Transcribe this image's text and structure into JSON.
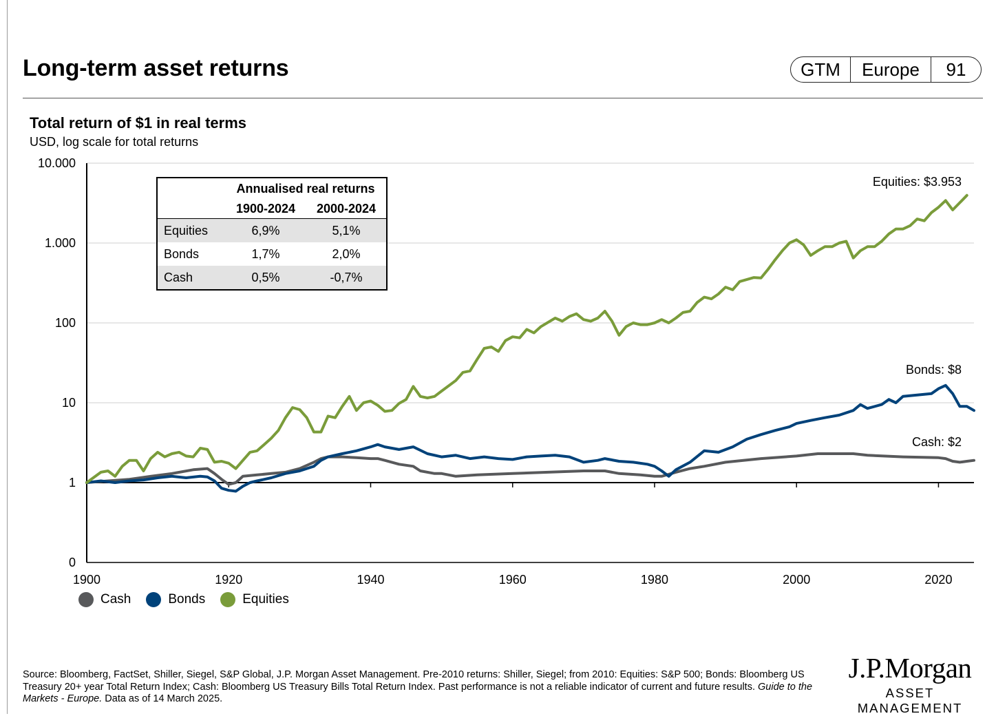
{
  "header": {
    "title": "Long-term asset returns",
    "tags": [
      "GTM",
      "Europe",
      "91"
    ]
  },
  "chart_data": {
    "type": "line",
    "title": "Total return of $1 in real terms",
    "subtitle": "USD, log scale for total returns",
    "y_scale": "log",
    "xlim": [
      1900,
      2025
    ],
    "ylim": [
      0.1,
      10000
    ],
    "x_ticks": [
      1900,
      1920,
      1940,
      1960,
      1980,
      2000,
      2020
    ],
    "y_ticks": [
      {
        "value": 10000,
        "label": "10.000"
      },
      {
        "value": 1000,
        "label": "1.000"
      },
      {
        "value": 100,
        "label": "100"
      },
      {
        "value": 10,
        "label": "10"
      },
      {
        "value": 1,
        "label": "1"
      },
      {
        "value": 0.1,
        "label": "0"
      }
    ],
    "grid": true,
    "legend_position": "bottom-left",
    "series": [
      {
        "name": "Cash",
        "color": "#58595b",
        "end_label": "Cash: $2",
        "points": [
          [
            1900,
            1
          ],
          [
            1903,
            1.05
          ],
          [
            1906,
            1.1
          ],
          [
            1909,
            1.2
          ],
          [
            1912,
            1.3
          ],
          [
            1915,
            1.45
          ],
          [
            1917,
            1.5
          ],
          [
            1918,
            1.3
          ],
          [
            1919,
            1.1
          ],
          [
            1920,
            0.95
          ],
          [
            1921,
            1.0
          ],
          [
            1922,
            1.2
          ],
          [
            1924,
            1.25
          ],
          [
            1926,
            1.3
          ],
          [
            1928,
            1.35
          ],
          [
            1930,
            1.5
          ],
          [
            1932,
            1.8
          ],
          [
            1933,
            2.0
          ],
          [
            1934,
            2.1
          ],
          [
            1936,
            2.1
          ],
          [
            1938,
            2.05
          ],
          [
            1940,
            2.0
          ],
          [
            1941,
            2.0
          ],
          [
            1942,
            1.9
          ],
          [
            1944,
            1.7
          ],
          [
            1946,
            1.6
          ],
          [
            1947,
            1.4
          ],
          [
            1949,
            1.3
          ],
          [
            1950,
            1.3
          ],
          [
            1952,
            1.2
          ],
          [
            1955,
            1.25
          ],
          [
            1960,
            1.3
          ],
          [
            1965,
            1.35
          ],
          [
            1970,
            1.4
          ],
          [
            1973,
            1.4
          ],
          [
            1975,
            1.3
          ],
          [
            1978,
            1.25
          ],
          [
            1980,
            1.2
          ],
          [
            1981,
            1.2
          ],
          [
            1983,
            1.35
          ],
          [
            1985,
            1.5
          ],
          [
            1987,
            1.6
          ],
          [
            1990,
            1.8
          ],
          [
            1995,
            2.0
          ],
          [
            2000,
            2.15
          ],
          [
            2003,
            2.3
          ],
          [
            2006,
            2.3
          ],
          [
            2008,
            2.3
          ],
          [
            2010,
            2.2
          ],
          [
            2015,
            2.1
          ],
          [
            2020,
            2.05
          ],
          [
            2021,
            2.0
          ],
          [
            2022,
            1.85
          ],
          [
            2023,
            1.8
          ],
          [
            2024,
            1.85
          ],
          [
            2025,
            1.9
          ]
        ]
      },
      {
        "name": "Bonds",
        "color": "#00427a",
        "end_label": "Bonds: $8",
        "points": [
          [
            1900,
            1
          ],
          [
            1902,
            1.05
          ],
          [
            1904,
            1.0
          ],
          [
            1906,
            1.05
          ],
          [
            1908,
            1.08
          ],
          [
            1910,
            1.15
          ],
          [
            1912,
            1.2
          ],
          [
            1914,
            1.15
          ],
          [
            1916,
            1.2
          ],
          [
            1917,
            1.18
          ],
          [
            1918,
            1.05
          ],
          [
            1919,
            0.85
          ],
          [
            1920,
            0.8
          ],
          [
            1921,
            0.78
          ],
          [
            1922,
            0.9
          ],
          [
            1923,
            1.0
          ],
          [
            1924,
            1.05
          ],
          [
            1926,
            1.15
          ],
          [
            1928,
            1.3
          ],
          [
            1930,
            1.4
          ],
          [
            1931,
            1.5
          ],
          [
            1932,
            1.6
          ],
          [
            1933,
            1.9
          ],
          [
            1934,
            2.1
          ],
          [
            1936,
            2.3
          ],
          [
            1938,
            2.5
          ],
          [
            1940,
            2.8
          ],
          [
            1941,
            3.0
          ],
          [
            1942,
            2.8
          ],
          [
            1944,
            2.6
          ],
          [
            1946,
            2.8
          ],
          [
            1948,
            2.3
          ],
          [
            1950,
            2.1
          ],
          [
            1952,
            2.2
          ],
          [
            1954,
            2.0
          ],
          [
            1956,
            2.1
          ],
          [
            1958,
            2.0
          ],
          [
            1960,
            1.95
          ],
          [
            1962,
            2.1
          ],
          [
            1964,
            2.15
          ],
          [
            1966,
            2.2
          ],
          [
            1968,
            2.1
          ],
          [
            1970,
            1.8
          ],
          [
            1972,
            1.9
          ],
          [
            1973,
            2.0
          ],
          [
            1975,
            1.85
          ],
          [
            1977,
            1.8
          ],
          [
            1979,
            1.7
          ],
          [
            1980,
            1.6
          ],
          [
            1981,
            1.4
          ],
          [
            1982,
            1.2
          ],
          [
            1983,
            1.45
          ],
          [
            1985,
            1.8
          ],
          [
            1987,
            2.5
          ],
          [
            1989,
            2.4
          ],
          [
            1991,
            2.8
          ],
          [
            1993,
            3.5
          ],
          [
            1995,
            4.0
          ],
          [
            1997,
            4.5
          ],
          [
            1999,
            5.0
          ],
          [
            2000,
            5.5
          ],
          [
            2002,
            6.0
          ],
          [
            2004,
            6.5
          ],
          [
            2006,
            7.0
          ],
          [
            2008,
            8.0
          ],
          [
            2009,
            9.5
          ],
          [
            2010,
            8.5
          ],
          [
            2012,
            9.5
          ],
          [
            2013,
            11.0
          ],
          [
            2014,
            10.0
          ],
          [
            2015,
            12.0
          ],
          [
            2017,
            12.5
          ],
          [
            2019,
            13.0
          ],
          [
            2020,
            15.0
          ],
          [
            2021,
            16.5
          ],
          [
            2022,
            13.0
          ],
          [
            2023,
            9.0
          ],
          [
            2024,
            9.0
          ],
          [
            2025,
            8.0
          ]
        ]
      },
      {
        "name": "Equities",
        "color": "#7a9c3a",
        "end_label": "Equities: $3.953",
        "points": [
          [
            1900,
            1
          ],
          [
            1902,
            1.35
          ],
          [
            1903,
            1.4
          ],
          [
            1904,
            1.2
          ],
          [
            1905,
            1.6
          ],
          [
            1906,
            1.9
          ],
          [
            1907,
            1.9
          ],
          [
            1908,
            1.4
          ],
          [
            1909,
            2.0
          ],
          [
            1910,
            2.4
          ],
          [
            1911,
            2.1
          ],
          [
            1912,
            2.3
          ],
          [
            1913,
            2.4
          ],
          [
            1914,
            2.15
          ],
          [
            1915,
            2.1
          ],
          [
            1916,
            2.7
          ],
          [
            1917,
            2.6
          ],
          [
            1918,
            1.8
          ],
          [
            1919,
            1.85
          ],
          [
            1920,
            1.75
          ],
          [
            1921,
            1.5
          ],
          [
            1922,
            1.9
          ],
          [
            1923,
            2.4
          ],
          [
            1924,
            2.5
          ],
          [
            1925,
            3.0
          ],
          [
            1926,
            3.6
          ],
          [
            1927,
            4.5
          ],
          [
            1928,
            6.5
          ],
          [
            1929,
            8.7
          ],
          [
            1930,
            8.2
          ],
          [
            1931,
            6.5
          ],
          [
            1932,
            4.3
          ],
          [
            1933,
            4.3
          ],
          [
            1934,
            6.8
          ],
          [
            1935,
            6.5
          ],
          [
            1936,
            9.0
          ],
          [
            1937,
            12.0
          ],
          [
            1938,
            8.0
          ],
          [
            1939,
            10.0
          ],
          [
            1940,
            10.5
          ],
          [
            1941,
            9.3
          ],
          [
            1942,
            7.8
          ],
          [
            1943,
            8.0
          ],
          [
            1944,
            9.8
          ],
          [
            1945,
            11.0
          ],
          [
            1946,
            16.0
          ],
          [
            1947,
            12.0
          ],
          [
            1948,
            11.5
          ],
          [
            1949,
            12.0
          ],
          [
            1950,
            14.0
          ],
          [
            1952,
            19.0
          ],
          [
            1953,
            24.0
          ],
          [
            1954,
            25.0
          ],
          [
            1955,
            35.0
          ],
          [
            1956,
            48.0
          ],
          [
            1957,
            50.0
          ],
          [
            1958,
            44.0
          ],
          [
            1959,
            60.0
          ],
          [
            1960,
            67.0
          ],
          [
            1961,
            65.0
          ],
          [
            1962,
            83.0
          ],
          [
            1963,
            75.0
          ],
          [
            1964,
            90.0
          ],
          [
            1966,
            115.0
          ],
          [
            1967,
            105.0
          ],
          [
            1968,
            120.0
          ],
          [
            1969,
            130.0
          ],
          [
            1970,
            110.0
          ],
          [
            1971,
            105.0
          ],
          [
            1972,
            115.0
          ],
          [
            1973,
            140.0
          ],
          [
            1974,
            105.0
          ],
          [
            1975,
            70.0
          ],
          [
            1976,
            90.0
          ],
          [
            1977,
            100.0
          ],
          [
            1978,
            95.0
          ],
          [
            1979,
            95.0
          ],
          [
            1980,
            100.0
          ],
          [
            1981,
            110.0
          ],
          [
            1982,
            100.0
          ],
          [
            1983,
            115.0
          ],
          [
            1984,
            135.0
          ],
          [
            1985,
            140.0
          ],
          [
            1986,
            180.0
          ],
          [
            1987,
            210.0
          ],
          [
            1988,
            200.0
          ],
          [
            1989,
            230.0
          ],
          [
            1990,
            280.0
          ],
          [
            1991,
            260.0
          ],
          [
            1992,
            330.0
          ],
          [
            1994,
            370.0
          ],
          [
            1995,
            365.0
          ],
          [
            1996,
            470.0
          ],
          [
            1997,
            620.0
          ],
          [
            1998,
            800.0
          ],
          [
            1999,
            1000.0
          ],
          [
            2000,
            1100.0
          ],
          [
            2001,
            950.0
          ],
          [
            2002,
            700.0
          ],
          [
            2003,
            800.0
          ],
          [
            2004,
            900.0
          ],
          [
            2005,
            900.0
          ],
          [
            2006,
            1000.0
          ],
          [
            2007,
            1050.0
          ],
          [
            2008,
            650.0
          ],
          [
            2009,
            800.0
          ],
          [
            2010,
            900.0
          ],
          [
            2011,
            900.0
          ],
          [
            2012,
            1050.0
          ],
          [
            2013,
            1300.0
          ],
          [
            2014,
            1500.0
          ],
          [
            2015,
            1500.0
          ],
          [
            2016,
            1650.0
          ],
          [
            2017,
            2000.0
          ],
          [
            2018,
            1900.0
          ],
          [
            2019,
            2400.0
          ],
          [
            2020,
            2800.0
          ],
          [
            2021,
            3400.0
          ],
          [
            2022,
            2600.0
          ],
          [
            2023,
            3200.0
          ],
          [
            2024,
            3953.0
          ]
        ]
      }
    ]
  },
  "returns_table": {
    "title": "Annualised real returns",
    "columns": [
      "1900-2024",
      "2000-2024"
    ],
    "rows": [
      {
        "label": "Equities",
        "v1": "6,9%",
        "v2": "5,1%"
      },
      {
        "label": "Bonds",
        "v1": "1,7%",
        "v2": "2,0%"
      },
      {
        "label": "Cash",
        "v1": "0,5%",
        "v2": "-0,7%"
      }
    ]
  },
  "legend": [
    {
      "label": "Cash",
      "color": "#58595b"
    },
    {
      "label": "Bonds",
      "color": "#00427a"
    },
    {
      "label": "Equities",
      "color": "#7a9c3a"
    }
  ],
  "footer": {
    "source_text": "Source: Bloomberg, FactSet, Shiller, Siegel, S&P Global, J.P. Morgan Asset Management. Pre-2010 returns: Shiller, Siegel; from 2010: Equities: S&P 500; Bonds: Bloomberg US Treasury 20+ year Total Return Index; Cash: Bloomberg US Treasury Bills Total Return Index. Past performance is not a reliable indicator of current and future results. ",
    "source_italic": "Guide to the Markets - Europe.",
    "source_tail": " Data as of 14 March 2025.",
    "brand_name": "J.P.Morgan",
    "brand_sub": "ASSET MANAGEMENT"
  }
}
